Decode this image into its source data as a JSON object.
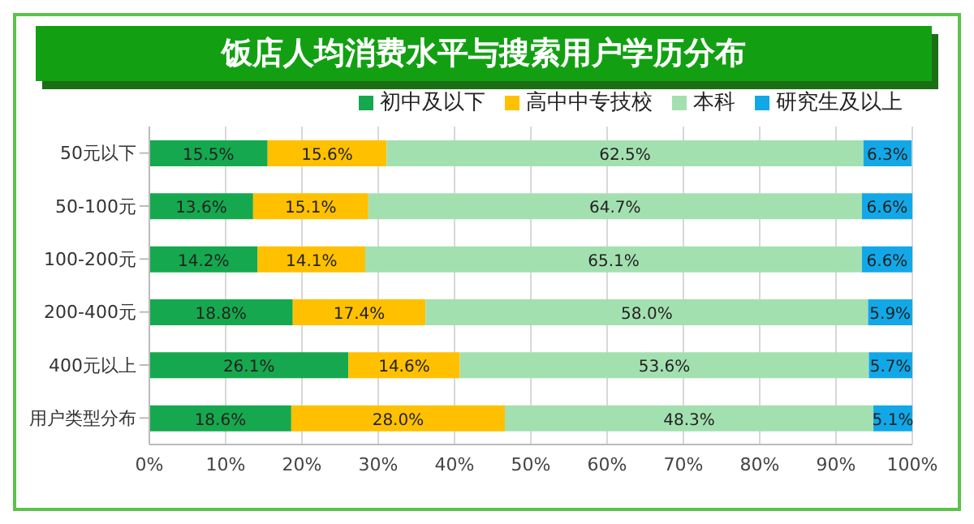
{
  "chart_data": {
    "type": "bar",
    "orientation": "horizontal",
    "stacked": true,
    "title": "饭店人均消费水平与搜索用户学历分布",
    "categories": [
      "50元以下",
      "50-100元",
      "100-200元",
      "200-400元",
      "400元以上",
      "用户类型分布"
    ],
    "series": [
      {
        "name": "初中及以下",
        "color": "#16a84e",
        "values": [
          15.5,
          13.6,
          14.2,
          18.8,
          26.1,
          18.6
        ],
        "value_labels": [
          "15.5%",
          "13.6%",
          "14.2%",
          "18.8%",
          "26.1%",
          "18.6%"
        ]
      },
      {
        "name": "高中中专技校",
        "color": "#ffc000",
        "values": [
          15.6,
          15.1,
          14.1,
          17.4,
          14.6,
          28.0
        ],
        "value_labels": [
          "15.6%",
          "15.1%",
          "14.1%",
          "17.4%",
          "14.6%",
          "28.0%"
        ]
      },
      {
        "name": "本科",
        "color": "#a3e0b0",
        "values": [
          62.5,
          64.7,
          65.1,
          58.0,
          53.6,
          48.3
        ],
        "value_labels": [
          "62.5%",
          "64.7%",
          "65.1%",
          "58.0%",
          "53.6%",
          "48.3%"
        ]
      },
      {
        "name": "研究生及以上",
        "color": "#12a8e8",
        "values": [
          6.3,
          6.6,
          6.6,
          5.9,
          5.7,
          5.1
        ],
        "value_labels": [
          "6.3%",
          "6.6%",
          "6.6%",
          "5.9%",
          "5.7%",
          "5.1%"
        ]
      }
    ],
    "xlim": [
      0,
      100
    ],
    "xticks": [
      {
        "value": 0,
        "label": "0%"
      },
      {
        "value": 10,
        "label": "10%"
      },
      {
        "value": 20,
        "label": "20%"
      },
      {
        "value": 30,
        "label": "30%"
      },
      {
        "value": 40,
        "label": "40%"
      },
      {
        "value": 50,
        "label": "50%"
      },
      {
        "value": 60,
        "label": "60%"
      },
      {
        "value": 70,
        "label": "70%"
      },
      {
        "value": 80,
        "label": "80%"
      },
      {
        "value": 90,
        "label": "90%"
      },
      {
        "value": 100,
        "label": "100%"
      }
    ],
    "grid": "x",
    "legend": "top right"
  }
}
